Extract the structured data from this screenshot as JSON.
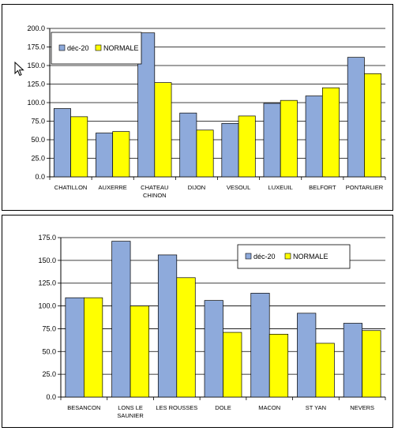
{
  "chart_data": [
    {
      "type": "bar",
      "categories": [
        [
          "CHATILLON"
        ],
        [
          "AUXERRE"
        ],
        [
          "CHATEAU",
          "CHINON"
        ],
        [
          "DIJON"
        ],
        [
          "VESOUL"
        ],
        [
          "LUXEUIL"
        ],
        [
          "BELFORT"
        ],
        [
          "PONTARLIER"
        ]
      ],
      "series": [
        {
          "name": "déc-20",
          "values": [
            92,
            59,
            194,
            86,
            72,
            99,
            109,
            161
          ],
          "color": "#8eaadb"
        },
        {
          "name": "NORMALE",
          "values": [
            81,
            61,
            127,
            63,
            82,
            103,
            120,
            139
          ],
          "color": "#ffff00"
        }
      ],
      "ylim": [
        0,
        200
      ],
      "yticks": [
        "0.0",
        "25.0",
        "50.0",
        "75.0",
        "100.0",
        "125.0",
        "150.0",
        "175.0",
        "200.0"
      ],
      "grid": true,
      "legend_position": "top-left"
    },
    {
      "type": "bar",
      "categories": [
        [
          "BESANCON"
        ],
        [
          "LONS LE",
          "SAUNIER"
        ],
        [
          "LES ROUSSES"
        ],
        [
          "DOLE"
        ],
        [
          "MACON"
        ],
        [
          "ST YAN"
        ],
        [
          "NEVERS"
        ]
      ],
      "series": [
        {
          "name": "déc-20",
          "values": [
            109,
            171,
            156,
            106,
            114,
            92,
            81
          ],
          "color": "#8eaadb"
        },
        {
          "name": "NORMALE",
          "values": [
            109,
            100,
            131,
            71,
            69,
            59,
            73
          ],
          "color": "#ffff00"
        }
      ],
      "ylim": [
        0,
        175
      ],
      "yticks": [
        "0.0",
        "25.0",
        "50.0",
        "75.0",
        "100.0",
        "125.0",
        "150.0",
        "175.0"
      ],
      "grid": true,
      "legend_position": "top-right"
    }
  ]
}
